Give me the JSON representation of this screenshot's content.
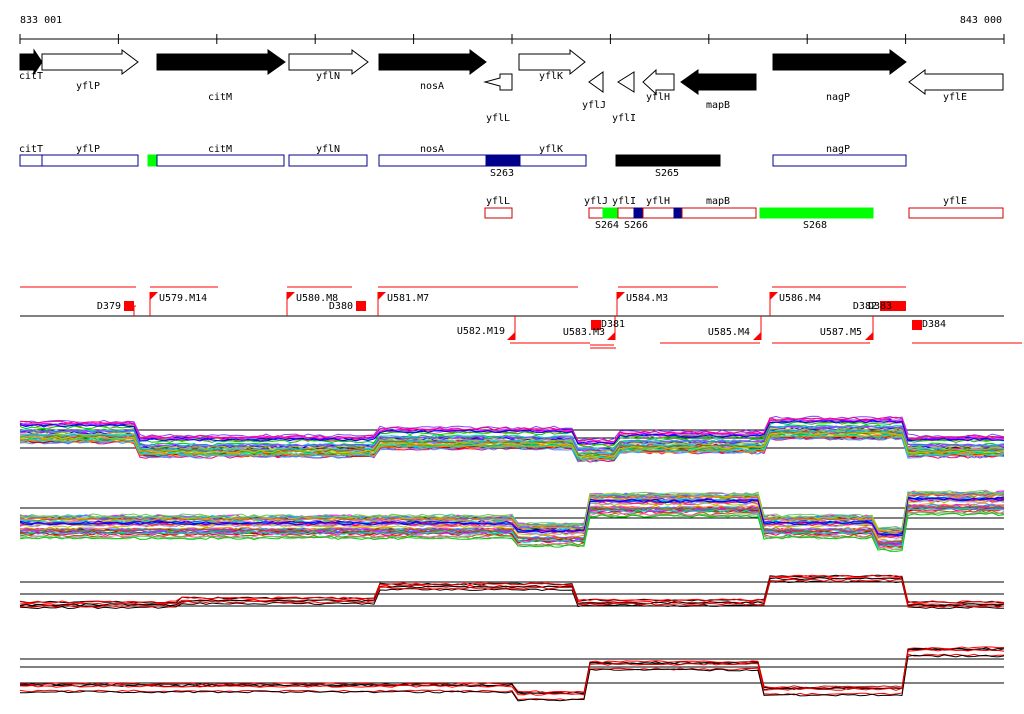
{
  "coords": {
    "start": "833 001",
    "end": "843 000"
  },
  "colors": {
    "gene_dark": "#000000",
    "gene_light": "#ffffff",
    "region_blue": "#00008b",
    "region_green": "#00ff00",
    "region_red": "#cc0000",
    "marker_red": "#ff0000"
  },
  "genes": [
    {
      "name": "citT",
      "strand": "+",
      "dark": true
    },
    {
      "name": "yflP",
      "strand": "+",
      "dark": false
    },
    {
      "name": "citM",
      "strand": "+",
      "dark": true
    },
    {
      "name": "yflN",
      "strand": "+",
      "dark": false
    },
    {
      "name": "nosA",
      "strand": "+",
      "dark": true
    },
    {
      "name": "yflL",
      "strand": "-",
      "dark": false
    },
    {
      "name": "yflK",
      "strand": "+",
      "dark": false
    },
    {
      "name": "yflJ",
      "strand": "-",
      "dark": false
    },
    {
      "name": "yflI",
      "strand": "-",
      "dark": false
    },
    {
      "name": "yflH",
      "strand": "-",
      "dark": false
    },
    {
      "name": "mapB",
      "strand": "-",
      "dark": true
    },
    {
      "name": "nagP",
      "strand": "+",
      "dark": true
    },
    {
      "name": "yflE",
      "strand": "-",
      "dark": false
    }
  ],
  "region_labels": {
    "blue_genes": [
      "citT",
      "yflP",
      "citM",
      "yflN",
      "nosA",
      "yflK",
      "nagP"
    ],
    "red_genes": [
      "yflL",
      "yflJ",
      "yflI",
      "yflH",
      "mapB",
      "yflE"
    ],
    "segments": [
      "S263",
      "S265",
      "S264",
      "S266",
      "S268"
    ]
  },
  "upstream_labels": {
    "top": [
      "D379",
      "U579.M14",
      "U580.M8",
      "D380",
      "U581.M7",
      "U584.M3",
      "U586.M4",
      "D382",
      "D383"
    ],
    "bottom": [
      "U582.M19",
      "U583.M3",
      "D381",
      "U585.M4",
      "U587.M5",
      "D384"
    ]
  }
}
